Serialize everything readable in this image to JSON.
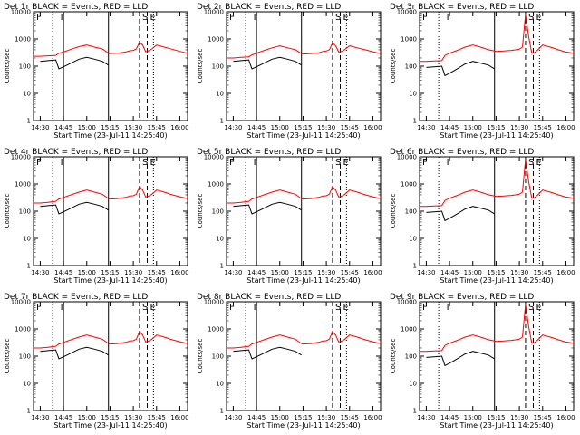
{
  "chart_data": {
    "type": "line",
    "y_scale": "log",
    "ylim": [
      1,
      10000
    ],
    "yticks": [
      "1",
      "10",
      "100",
      "1000",
      "10000"
    ],
    "xlim": [
      "14:25:40",
      "16:05"
    ],
    "xticks": [
      "14:30",
      "14:45",
      "15:00",
      "15:15",
      "15:30",
      "15:45",
      "16:00"
    ],
    "ylabel": "Counts/sec",
    "xlabel": "Start Time (23-Jul-11 14:25:40)",
    "series_legend": [
      "BLACK = Events",
      "RED = LLD"
    ],
    "colors": {
      "events": "#000000",
      "lld": "#ff0000"
    },
    "markers": [
      {
        "label": "S",
        "time": "15:34",
        "style": "dashed"
      },
      {
        "label": "E",
        "time": "15:39",
        "style": "dashed"
      }
    ],
    "t_axis": [
      "14:26",
      "14:30",
      "14:35",
      "14:40",
      "14:42",
      "14:45",
      "14:50",
      "14:55",
      "15:00",
      "15:05",
      "15:10",
      "15:14",
      "15:15",
      "15:20",
      "15:25",
      "15:28",
      "15:30",
      "15:32",
      "15:34",
      "15:36",
      "15:38",
      "15:40",
      "15:42",
      "15:45",
      "15:50",
      "15:55",
      "16:00",
      "16:05"
    ],
    "panels": [
      {
        "title": "Det 1r BLACK = Events, RED = LLD",
        "f_label": "F",
        "i_label": "I",
        "solid_lines": [
          "14:45",
          "15:14"
        ],
        "dotted_lines": [
          "14:38",
          "15:43"
        ],
        "lld": [
          230,
          230,
          240,
          250,
          300,
          330,
          420,
          520,
          600,
          500,
          430,
          300,
          290,
          300,
          330,
          370,
          380,
          430,
          750,
          600,
          340,
          370,
          430,
          600,
          500,
          420,
          350,
          300
        ],
        "events": [
          null,
          150,
          160,
          170,
          80,
          95,
          130,
          180,
          210,
          180,
          150,
          110,
          null,
          null,
          null,
          null,
          null,
          null,
          null,
          null,
          null,
          null,
          null,
          null,
          null,
          null,
          null,
          null
        ]
      },
      {
        "title": "Det 2r BLACK = Events, RED = LLD",
        "f_label": "F",
        "i_label": "I",
        "solid_lines": [
          "14:45",
          "15:14"
        ],
        "dotted_lines": [
          "14:38",
          "15:43"
        ],
        "lld": [
          200,
          200,
          210,
          220,
          260,
          300,
          380,
          470,
          560,
          470,
          400,
          290,
          280,
          290,
          310,
          350,
          360,
          400,
          700,
          560,
          330,
          350,
          410,
          560,
          470,
          400,
          340,
          290
        ],
        "events": [
          null,
          150,
          160,
          170,
          80,
          95,
          130,
          180,
          210,
          180,
          150,
          110,
          null,
          null,
          null,
          null,
          null,
          null,
          null,
          null,
          null,
          null,
          null,
          null,
          null,
          null,
          null,
          null
        ]
      },
      {
        "title": "Det 3r BLACK = Events, RED = LLD",
        "f_label": "F",
        "i_label": "I",
        "solid_lines": [
          "15:14"
        ],
        "dotted_lines": [
          "14:38",
          "15:43"
        ],
        "lld": [
          150,
          150,
          155,
          160,
          250,
          300,
          380,
          500,
          600,
          500,
          400,
          360,
          350,
          360,
          380,
          400,
          420,
          500,
          8000,
          1200,
          300,
          320,
          400,
          600,
          500,
          400,
          330,
          300
        ],
        "events": [
          null,
          90,
          95,
          100,
          45,
          55,
          80,
          120,
          150,
          130,
          110,
          80,
          null,
          null,
          null,
          null,
          null,
          null,
          null,
          null,
          null,
          null,
          null,
          null,
          null,
          null,
          null,
          null
        ]
      },
      {
        "title": "Det 4r BLACK = Events, RED = LLD",
        "f_label": "F",
        "i_label": "I",
        "solid_lines": [
          "14:45",
          "15:14"
        ],
        "dotted_lines": [
          "14:38",
          "15:43"
        ],
        "lld": [
          200,
          200,
          210,
          230,
          280,
          320,
          400,
          500,
          600,
          500,
          420,
          290,
          280,
          290,
          320,
          360,
          370,
          420,
          800,
          600,
          330,
          360,
          420,
          600,
          500,
          400,
          340,
          290
        ],
        "events": [
          null,
          150,
          160,
          170,
          80,
          95,
          130,
          180,
          210,
          180,
          150,
          110,
          null,
          null,
          null,
          null,
          null,
          null,
          null,
          null,
          null,
          null,
          null,
          null,
          null,
          null,
          null,
          null
        ]
      },
      {
        "title": "Det 5r BLACK = Events, RED = LLD",
        "f_label": "F",
        "i_label": "I",
        "solid_lines": [
          "14:45",
          "15:14"
        ],
        "dotted_lines": [
          "14:38",
          "15:43"
        ],
        "lld": [
          200,
          200,
          210,
          230,
          280,
          320,
          400,
          500,
          600,
          500,
          420,
          290,
          280,
          290,
          320,
          360,
          370,
          420,
          800,
          600,
          330,
          360,
          420,
          600,
          500,
          400,
          340,
          290
        ],
        "events": [
          null,
          150,
          160,
          170,
          80,
          95,
          130,
          180,
          210,
          180,
          150,
          110,
          null,
          null,
          null,
          null,
          null,
          null,
          null,
          null,
          null,
          null,
          null,
          null,
          null,
          null,
          null,
          null
        ]
      },
      {
        "title": "Det 6r BLACK = Events, RED = LLD",
        "f_label": "F",
        "i_label": "I",
        "solid_lines": [
          "15:14"
        ],
        "dotted_lines": [
          "14:38",
          "15:43"
        ],
        "lld": [
          150,
          150,
          155,
          160,
          250,
          300,
          380,
          500,
          600,
          500,
          400,
          360,
          350,
          360,
          380,
          400,
          420,
          500,
          8000,
          1200,
          300,
          320,
          400,
          600,
          500,
          400,
          330,
          300
        ],
        "events": [
          null,
          90,
          95,
          100,
          45,
          55,
          80,
          120,
          150,
          130,
          110,
          80,
          null,
          null,
          null,
          null,
          null,
          null,
          null,
          null,
          null,
          null,
          null,
          null,
          null,
          null,
          null,
          null
        ]
      },
      {
        "title": "Det 7r BLACK = Events, RED = LLD",
        "f_label": "F",
        "i_label": "I",
        "solid_lines": [
          "14:45",
          "15:14"
        ],
        "dotted_lines": [
          "14:38",
          "15:43"
        ],
        "lld": [
          200,
          200,
          210,
          230,
          280,
          320,
          400,
          500,
          600,
          500,
          420,
          290,
          280,
          290,
          320,
          360,
          370,
          420,
          800,
          600,
          330,
          360,
          420,
          600,
          500,
          400,
          340,
          290
        ],
        "events": [
          null,
          150,
          160,
          170,
          80,
          95,
          130,
          180,
          210,
          180,
          150,
          110,
          null,
          null,
          null,
          null,
          null,
          null,
          null,
          null,
          null,
          null,
          null,
          null,
          null,
          null,
          null,
          null
        ]
      },
      {
        "title": "Det 8r BLACK = Events, RED = LLD",
        "f_label": "F",
        "i_label": "I",
        "solid_lines": [
          "14:45"
        ],
        "dotted_lines": [
          "14:38",
          "15:43"
        ],
        "lld": [
          200,
          200,
          210,
          230,
          280,
          320,
          400,
          500,
          600,
          500,
          420,
          290,
          280,
          290,
          320,
          360,
          370,
          420,
          800,
          600,
          330,
          360,
          420,
          600,
          500,
          400,
          340,
          290
        ],
        "events": [
          null,
          150,
          160,
          170,
          80,
          95,
          130,
          180,
          210,
          180,
          150,
          110,
          null,
          null,
          null,
          null,
          null,
          null,
          null,
          null,
          null,
          null,
          null,
          null,
          null,
          null,
          null,
          null
        ]
      },
      {
        "title": "Det 9r BLACK = Events, RED = LLD",
        "f_label": "F",
        "i_label": "I",
        "solid_lines": [
          "15:14"
        ],
        "dotted_lines": [
          "14:38",
          "15:43"
        ],
        "lld": [
          150,
          150,
          155,
          160,
          250,
          300,
          380,
          500,
          600,
          500,
          400,
          360,
          350,
          360,
          380,
          400,
          420,
          500,
          8000,
          1200,
          300,
          320,
          400,
          600,
          500,
          400,
          330,
          300
        ],
        "events": [
          null,
          90,
          95,
          100,
          45,
          55,
          80,
          120,
          150,
          130,
          110,
          80,
          null,
          null,
          null,
          null,
          null,
          null,
          null,
          null,
          null,
          null,
          null,
          null,
          null,
          null,
          null,
          null
        ]
      }
    ]
  }
}
